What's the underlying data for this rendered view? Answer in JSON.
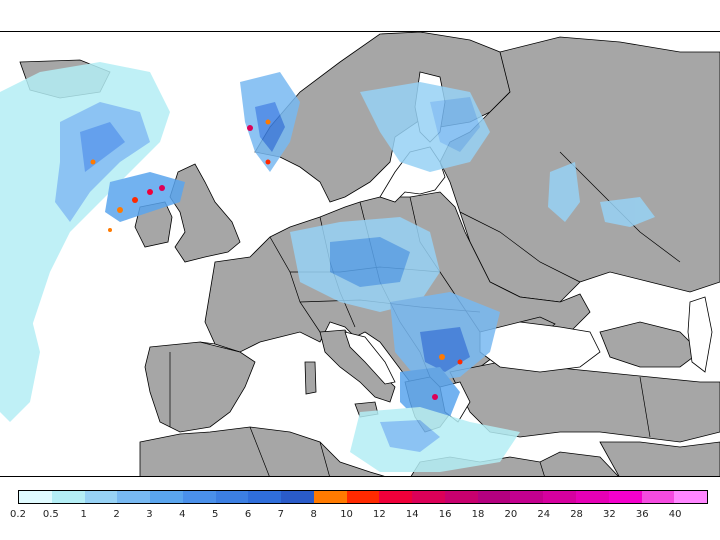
{
  "map": {
    "colors": {
      "sea": "#ffffff",
      "land": "#a6a6a6",
      "border": "#000000"
    }
  },
  "legend": {
    "colors": [
      "#e0fbff",
      "#b4eef5",
      "#97d2f5",
      "#78b9f2",
      "#5aa5ee",
      "#4a90ea",
      "#3c7fe3",
      "#2f6edb",
      "#2a5bc9",
      "#ff7a00",
      "#ff2a00",
      "#f0003a",
      "#dc0058",
      "#c8006e",
      "#b4007f",
      "#c4008f",
      "#d6009f",
      "#e600b6",
      "#f400cc",
      "#f54be0",
      "#ff86ff"
    ],
    "labels": [
      "0.2",
      "0.5",
      "1",
      "2",
      "3",
      "4",
      "5",
      "6",
      "7",
      "8",
      "10",
      "12",
      "14",
      "16",
      "18",
      "20",
      "24",
      "28",
      "32",
      "36",
      "40"
    ]
  }
}
